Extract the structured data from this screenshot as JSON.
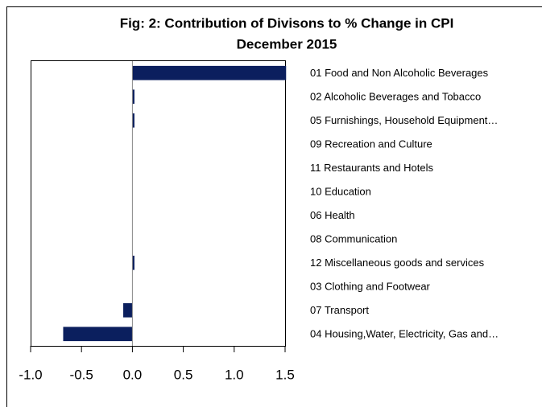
{
  "chart_data": {
    "type": "bar",
    "orientation": "horizontal",
    "title": "Fig: 2: Contribution  of Divisons to % Change in CPI",
    "subtitle": "December 2015",
    "categories": [
      "01 Food and Non Alcoholic Beverages",
      "02 Alcoholic Beverages and Tobacco",
      "05 Furnishings, Household Equipment…",
      "09 Recreation and Culture",
      "11 Restaurants and Hotels",
      "10 Education",
      "06 Health",
      "08 Communication",
      "12 Miscellaneous goods and services",
      "03 Clothing and Footwear",
      "07 Transport",
      "04 Housing,Water, Electricity,  Gas and…"
    ],
    "values": [
      1.51,
      0.02,
      0.02,
      0,
      0,
      0,
      0,
      0,
      0.02,
      0,
      -0.09,
      -0.68
    ],
    "color": "#0b1f5e",
    "xlim": [
      -1.0,
      1.5
    ],
    "xticks": [
      {
        "value": -1.0,
        "label": "-1.0"
      },
      -0.5,
      {
        "value": 0.0,
        "label": "0.0"
      },
      0.5,
      {
        "value": 1.0,
        "label": "1.0"
      },
      1.5
    ]
  }
}
